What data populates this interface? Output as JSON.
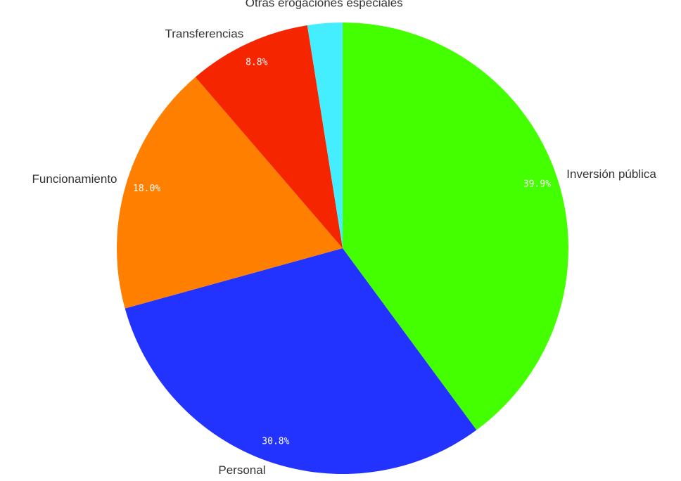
{
  "chart_data": {
    "type": "pie",
    "title": "",
    "legend": "none",
    "slices": [
      {
        "label": "Inversión pública",
        "value": 39.9,
        "value_label": "39.9%",
        "color": "#44ff00"
      },
      {
        "label": "Personal",
        "value": 30.8,
        "value_label": "30.8%",
        "color": "#2233ff"
      },
      {
        "label": "Funcionamiento",
        "value": 18.0,
        "value_label": "18.0%",
        "color": "#ff7f00"
      },
      {
        "label": "Transferencias",
        "value": 8.8,
        "value_label": "8.8%",
        "color": "#f52500"
      },
      {
        "label": "Otras erogaciones especiales",
        "value": 2.5,
        "value_label": "",
        "color": "#44eeff"
      }
    ]
  }
}
